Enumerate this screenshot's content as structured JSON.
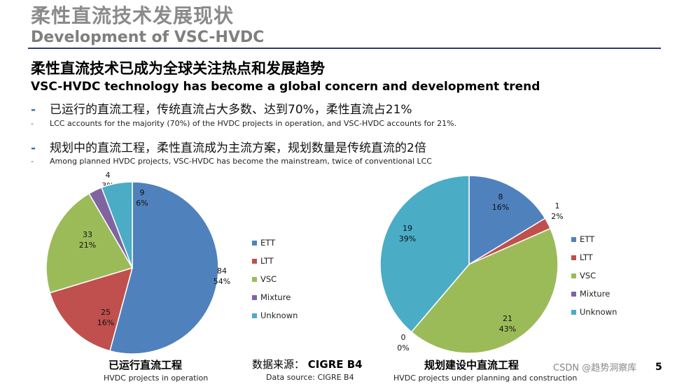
{
  "header": {
    "title_cn": "柔性直流技术发展现状",
    "title_en": "Development of VSC-HVDC"
  },
  "content": {
    "heading_cn": "柔性直流技术已成为全球关注热点和发展趋势",
    "heading_en": "VSC-HVDC technology has become a global concern and development trend",
    "bullets": [
      {
        "dash": "-",
        "cn": "已运行的直流工程，传统直流占大多数、达到70%，柔性直流占21%",
        "en": "LCC accounts for the majority (70%) of the HVDC projects in operation, and VSC-HVDC accounts for 21%."
      },
      {
        "dash": "-",
        "cn": "规划中的直流工程，柔性直流成为主流方案，规划数量是传统直流的2倍",
        "en": "Among planned HVDC projects, VSC-HVDC has become the mainstream, twice of conventional LCC"
      }
    ]
  },
  "colors": {
    "ETT": "#4f81bd",
    "LTT": "#c0504d",
    "VSC": "#9bbb59",
    "Mixture": "#8064a2",
    "Unknown": "#4bacc6"
  },
  "chart_data": [
    {
      "type": "pie",
      "title_cn": "已运行直流工程",
      "title_en": "HVDC projects in operation",
      "categories": [
        "ETT",
        "LTT",
        "VSC",
        "Mixture",
        "Unknown"
      ],
      "values": [
        84,
        25,
        33,
        4,
        9
      ],
      "percents": [
        "54%",
        "16%",
        "21%",
        "3%",
        "6%"
      ],
      "start": "top, clockwise",
      "legend": [
        "ETT",
        "LTT",
        "VSC",
        "Mixture",
        "Unknown"
      ],
      "legend_position": "right"
    },
    {
      "type": "pie",
      "title_cn": "规划建设中直流工程",
      "title_en": "HVDC projects under planning and construction",
      "categories": [
        "ETT",
        "LTT",
        "VSC",
        "Mixture",
        "Unknown"
      ],
      "values": [
        8,
        1,
        21,
        0,
        19
      ],
      "percents": [
        "16%",
        "2%",
        "43%",
        "0%",
        "39%"
      ],
      "start": "top, clockwise",
      "legend": [
        "ETT",
        "LTT",
        "VSC",
        "Mixture",
        "Unknown"
      ],
      "legend_position": "right"
    }
  ],
  "source": {
    "cn_prefix": "数据来源：",
    "cn_name": "CIGRE B4",
    "en": "Data source: CIGRE B4"
  },
  "page_number": "5",
  "watermark": "CSDN @趋势洞察库"
}
